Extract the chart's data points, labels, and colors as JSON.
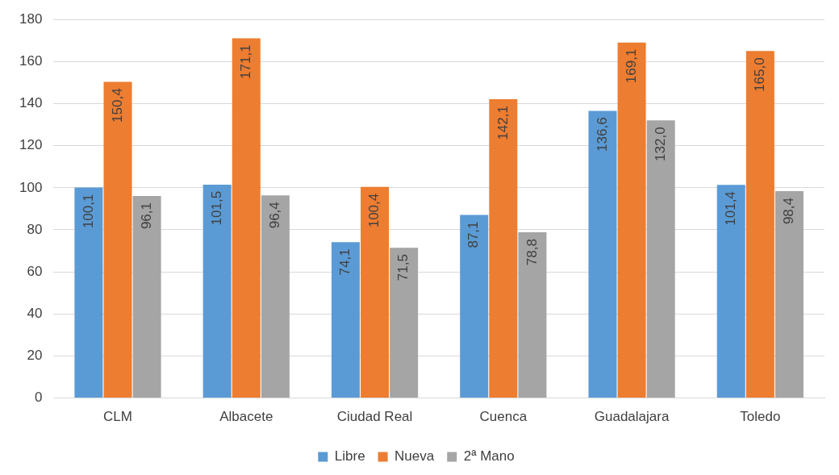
{
  "chart_data": {
    "type": "bar",
    "categories": [
      "CLM",
      "Albacete",
      "Ciudad Real",
      "Cuenca",
      "Guadalajara",
      "Toledo"
    ],
    "series": [
      {
        "name": "Libre",
        "color": "#5b9bd5",
        "values": [
          100.1,
          101.5,
          74.1,
          87.1,
          136.6,
          101.4
        ],
        "value_labels": [
          "100,1",
          "101,5",
          "74,1",
          "87,1",
          "136,6",
          "101,4"
        ]
      },
      {
        "name": "Nueva",
        "color": "#ed7d31",
        "values": [
          150.4,
          171.1,
          100.4,
          142.1,
          169.1,
          165.0
        ],
        "value_labels": [
          "150,4",
          "171,1",
          "100,4",
          "142,1",
          "169,1",
          "165,0"
        ]
      },
      {
        "name": "2ª Mano",
        "color": "#a5a5a5",
        "values": [
          96.1,
          96.4,
          71.5,
          78.8,
          132.0,
          98.4
        ],
        "value_labels": [
          "96,1",
          "96,4",
          "71,5",
          "78,8",
          "132,0",
          "98,4"
        ]
      }
    ],
    "ylim": [
      0,
      180
    ],
    "yticks": [
      0,
      20,
      40,
      60,
      80,
      100,
      120,
      140,
      160,
      180
    ],
    "grid": "y",
    "legend": "bottom"
  }
}
